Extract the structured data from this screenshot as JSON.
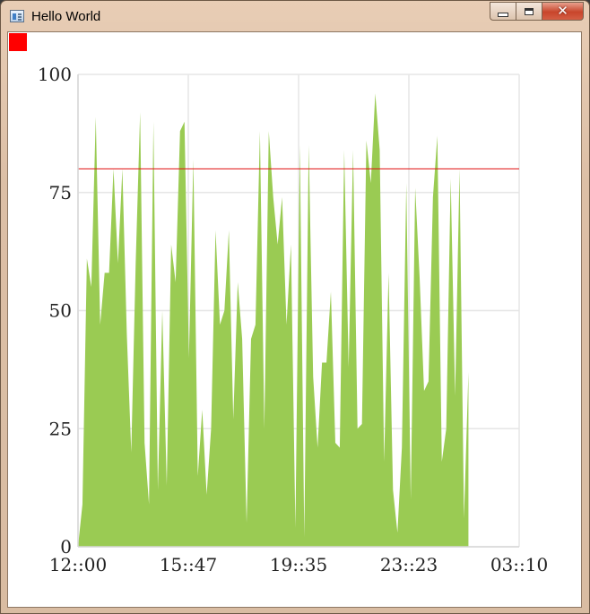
{
  "window": {
    "title": "Hello World",
    "close_glyph": "✕"
  },
  "colors": {
    "area": "#9acb53",
    "threshold": "#e01010",
    "grid": "#e6e6e6",
    "axis": "#d8d8d8",
    "indicator": "#ff0000"
  },
  "chart_data": {
    "type": "area",
    "ylim": [
      0,
      100
    ],
    "xlim": [
      "12::00",
      "03::10"
    ],
    "y_ticks": [
      "0",
      "25",
      "50",
      "75",
      "100"
    ],
    "x_ticks": [
      "12::00",
      "15::47",
      "19::35",
      "23::23",
      "03::10"
    ],
    "threshold": 80,
    "grid": true,
    "series": [
      {
        "values": [
          0,
          9,
          61,
          55,
          91,
          47,
          58,
          58,
          80,
          60,
          80,
          45,
          20,
          60,
          92,
          22,
          9,
          90,
          12,
          50,
          13,
          64,
          56,
          88,
          90,
          40,
          82,
          15,
          29,
          11,
          25,
          67,
          47,
          50,
          67,
          27,
          56,
          44,
          5,
          44,
          47,
          88,
          25,
          88,
          74,
          64,
          74,
          47,
          64,
          4,
          85,
          2,
          85,
          36,
          21,
          39,
          39,
          54,
          22,
          21,
          84,
          38,
          84,
          25,
          26,
          86,
          77,
          96,
          84,
          18,
          58,
          12,
          3,
          21,
          77,
          10,
          76,
          57,
          33,
          35,
          74,
          87,
          18,
          25,
          78,
          32,
          80,
          6,
          37
        ]
      }
    ]
  }
}
